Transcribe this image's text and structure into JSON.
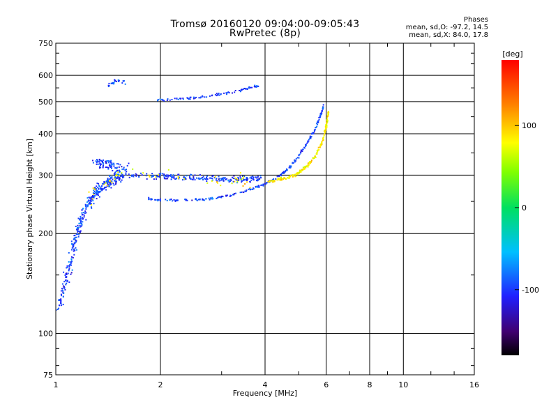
{
  "chart_data": {
    "type": "scatter",
    "title": "Tromsø 20160120 09:04:00-09:05:43",
    "subtitle": "RwPretec (8p)",
    "xlabel": "Frequency [MHz]",
    "ylabel": "Stationary phase Virtual Height [km]",
    "x_scale": "log2",
    "y_scale": "log",
    "xlim": [
      1,
      16
    ],
    "ylim": [
      75,
      750
    ],
    "x_ticks": [
      1,
      2,
      4,
      6,
      8,
      10,
      16
    ],
    "y_ticks": [
      75,
      100,
      200,
      300,
      400,
      500,
      600,
      750
    ],
    "grid": true,
    "stats": {
      "title": "Phases",
      "o_mode": "mean, sd,O: -97.2, 14.5",
      "x_mode": "mean, sd,X:  84.0, 17.8"
    },
    "colorbar": {
      "label": "[deg]",
      "range": [
        -180,
        180
      ],
      "ticks": [
        100,
        0,
        -100
      ]
    },
    "traces": [
      {
        "name": "",
        "phase": -97,
        "points": [
          [
            1.85,
            255
          ],
          [
            2.0,
            253
          ],
          [
            2.3,
            252
          ],
          [
            2.6,
            253
          ],
          [
            2.9,
            256
          ],
          [
            3.2,
            261
          ],
          [
            3.5,
            268
          ],
          [
            3.8,
            276
          ],
          [
            4.1,
            286
          ],
          [
            4.4,
            298
          ],
          [
            4.7,
            316
          ],
          [
            4.95,
            338
          ],
          [
            5.2,
            365
          ],
          [
            5.45,
            395
          ],
          [
            5.65,
            425
          ],
          [
            5.8,
            460
          ],
          [
            5.9,
            490
          ]
        ],
        "spread": 0.012,
        "n": 260
      },
      {
        "name": "",
        "phase": -97,
        "points": [
          [
            1.55,
            300
          ],
          [
            1.9,
            298
          ],
          [
            2.2,
            296
          ],
          [
            2.6,
            294
          ],
          [
            3.0,
            292
          ],
          [
            3.4,
            292
          ],
          [
            3.9,
            293
          ]
        ],
        "spread": 0.03,
        "n": 220
      },
      {
        "name": "",
        "phase": -97,
        "points": [
          [
            1.95,
            505
          ],
          [
            2.3,
            510
          ],
          [
            2.7,
            518
          ],
          [
            3.1,
            530
          ],
          [
            3.5,
            545
          ],
          [
            3.85,
            560
          ]
        ],
        "spread": 0.012,
        "n": 90
      },
      {
        "name": "",
        "phase": -97,
        "points": [
          [
            1.02,
            120
          ],
          [
            1.08,
            150
          ],
          [
            1.15,
            200
          ],
          [
            1.22,
            240
          ],
          [
            1.3,
            265
          ],
          [
            1.38,
            280
          ],
          [
            1.45,
            290
          ],
          [
            1.55,
            295
          ]
        ],
        "spread": 0.06,
        "n": 360
      },
      {
        "name": "",
        "phase": -97,
        "points": [
          [
            1.3,
            330
          ],
          [
            1.45,
            320
          ],
          [
            1.6,
            310
          ]
        ],
        "spread": 0.06,
        "n": 90
      },
      {
        "name": "",
        "phase": -97,
        "points": [
          [
            1.42,
            560
          ],
          [
            1.5,
            580
          ],
          [
            1.58,
            570
          ]
        ],
        "spread": 0.02,
        "n": 25
      },
      {
        "name": "",
        "phase": 84,
        "points": [
          [
            4.1,
            287
          ],
          [
            4.5,
            292
          ],
          [
            4.9,
            300
          ],
          [
            5.3,
            320
          ],
          [
            5.6,
            345
          ],
          [
            5.85,
            380
          ],
          [
            6.0,
            420
          ],
          [
            6.1,
            470
          ]
        ],
        "spread": 0.015,
        "n": 210
      },
      {
        "name": "",
        "phase": 84,
        "points": [
          [
            1.25,
            260
          ],
          [
            1.4,
            280
          ],
          [
            1.55,
            300
          ],
          [
            3.2,
            290
          ],
          [
            3.6,
            285
          ]
        ],
        "spread": 0.07,
        "n": 50
      }
    ]
  }
}
